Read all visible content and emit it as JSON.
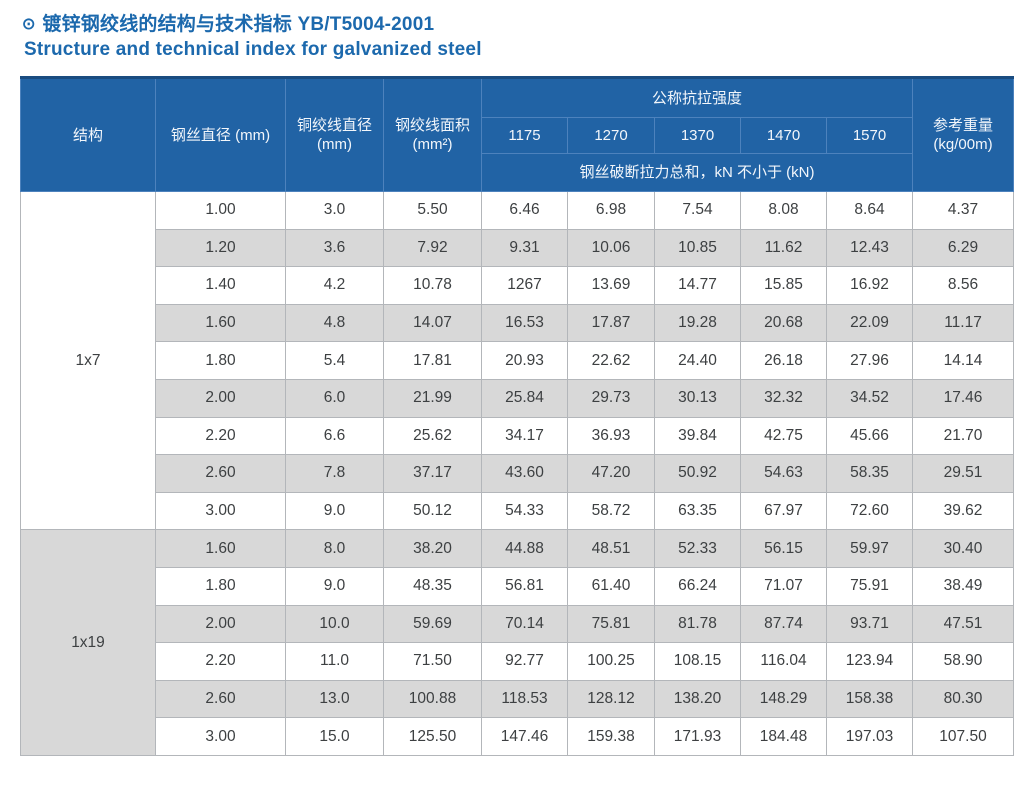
{
  "colors": {
    "title_color": "#1c69ad",
    "header_bg": "#2163a5",
    "header_border": "#4d82bd",
    "top_border": "#1a4c80",
    "body_border": "#b3b6ba",
    "group_border": "#8f9499",
    "stripe": "#d8d8d8",
    "cell_text": "#3d4042"
  },
  "page": {
    "bullet": "⊙",
    "title_zh": "镀锌钢绞线的结构与技术指标 YB/T5004-2001",
    "title_en": "Structure and technical index for galvanized steel"
  },
  "table": {
    "headers": {
      "structure": "结构",
      "wire_diameter": "钢丝直径 (mm)",
      "strand_diameter_l1": "铜绞线直径",
      "strand_diameter_l2": "(mm)",
      "strand_area_l1": "钢绞线面积",
      "strand_area_l2": "(mm²)",
      "tensile_group": "公称抗拉强度",
      "strengths": [
        "1175",
        "1270",
        "1370",
        "1470",
        "1570"
      ],
      "breaking_note": "钢丝破断拉力总和，kN 不小于 (kN)",
      "ref_weight_l1": "参考重量",
      "ref_weight_l2": "(kg/00m)"
    },
    "groups": [
      {
        "structure": "1x7",
        "rows": [
          [
            "1.00",
            "3.0",
            "5.50",
            "6.46",
            "6.98",
            "7.54",
            "8.08",
            "8.64",
            "4.37"
          ],
          [
            "1.20",
            "3.6",
            "7.92",
            "9.31",
            "10.06",
            "10.85",
            "11.62",
            "12.43",
            "6.29"
          ],
          [
            "1.40",
            "4.2",
            "10.78",
            "1267",
            "13.69",
            "14.77",
            "15.85",
            "16.92",
            "8.56"
          ],
          [
            "1.60",
            "4.8",
            "14.07",
            "16.53",
            "17.87",
            "19.28",
            "20.68",
            "22.09",
            "11.17"
          ],
          [
            "1.80",
            "5.4",
            "17.81",
            "20.93",
            "22.62",
            "24.40",
            "26.18",
            "27.96",
            "14.14"
          ],
          [
            "2.00",
            "6.0",
            "21.99",
            "25.84",
            "29.73",
            "30.13",
            "32.32",
            "34.52",
            "17.46"
          ],
          [
            "2.20",
            "6.6",
            "25.62",
            "34.17",
            "36.93",
            "39.84",
            "42.75",
            "45.66",
            "21.70"
          ],
          [
            "2.60",
            "7.8",
            "37.17",
            "43.60",
            "47.20",
            "50.92",
            "54.63",
            "58.35",
            "29.51"
          ],
          [
            "3.00",
            "9.0",
            "50.12",
            "54.33",
            "58.72",
            "63.35",
            "67.97",
            "72.60",
            "39.62"
          ]
        ]
      },
      {
        "structure": "1x19",
        "rows": [
          [
            "1.60",
            "8.0",
            "38.20",
            "44.88",
            "48.51",
            "52.33",
            "56.15",
            "59.97",
            "30.40"
          ],
          [
            "1.80",
            "9.0",
            "48.35",
            "56.81",
            "61.40",
            "66.24",
            "71.07",
            "75.91",
            "38.49"
          ],
          [
            "2.00",
            "10.0",
            "59.69",
            "70.14",
            "75.81",
            "81.78",
            "87.74",
            "93.71",
            "47.51"
          ],
          [
            "2.20",
            "11.0",
            "71.50",
            "92.77",
            "100.25",
            "108.15",
            "116.04",
            "123.94",
            "58.90"
          ],
          [
            "2.60",
            "13.0",
            "100.88",
            "118.53",
            "128.12",
            "138.20",
            "148.29",
            "158.38",
            "80.30"
          ],
          [
            "3.00",
            "15.0",
            "125.50",
            "147.46",
            "159.38",
            "171.93",
            "184.48",
            "197.03",
            "107.50"
          ]
        ]
      }
    ]
  }
}
